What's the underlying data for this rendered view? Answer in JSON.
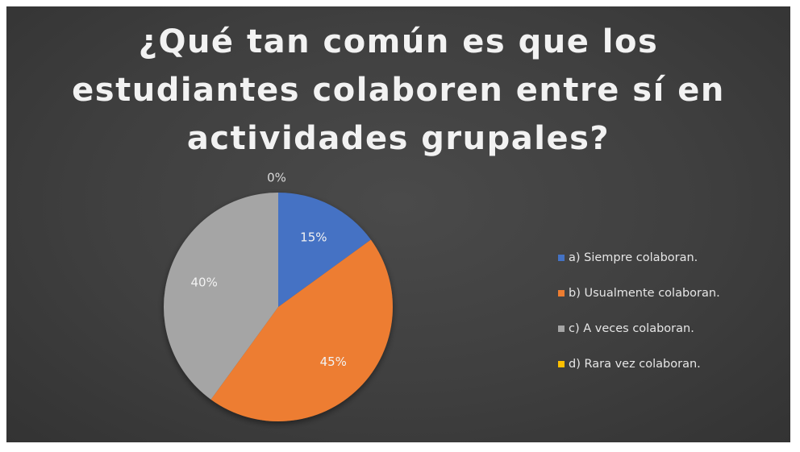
{
  "chart_data": {
    "type": "pie",
    "title": "¿Qué tan común es que los estudiantes colaboren entre sí en actividades grupales?",
    "title_lines": [
      "¿Qué tan común es que los",
      "estudiantes colaboren entre sí en",
      "actividades grupales?"
    ],
    "categories": [
      "a) Siempre colaboran.",
      "b) Usualmente colaboran.",
      "c) A veces colaboran.",
      "d) Rara vez colaboran."
    ],
    "values": [
      15,
      45,
      40,
      0
    ],
    "data_labels": [
      "15%",
      "45%",
      "40%",
      "0%"
    ],
    "colors": [
      "#4472c4",
      "#ed7d31",
      "#a5a5a5",
      "#ffc000"
    ],
    "legend_position": "right",
    "background": "#404040"
  }
}
